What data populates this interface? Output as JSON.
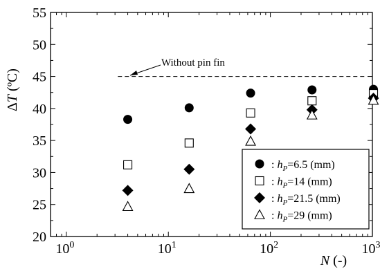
{
  "chart_data": {
    "type": "scatter",
    "xscale": "log",
    "xlim": [
      0.7,
      1000
    ],
    "ylim": [
      20,
      55
    ],
    "grid": false,
    "x_ticks": [
      {
        "value": 1,
        "base": "10",
        "exp": "0"
      },
      {
        "value": 10,
        "base": "10",
        "exp": "1"
      },
      {
        "value": 100,
        "base": "10",
        "exp": "2"
      },
      {
        "value": 1000,
        "base": "10",
        "exp": "3"
      }
    ],
    "y_ticks": [
      20,
      25,
      30,
      35,
      40,
      45,
      50,
      55
    ],
    "xlabel": {
      "symbol": "N",
      "unit": " (-)"
    },
    "ylabel": {
      "prefix": "Δ",
      "symbol": "T",
      "unit": " (ºC)"
    },
    "legend_position": "bottom-right",
    "series": [
      {
        "name": {
          "prefix": ": ",
          "sym": "h",
          "sub": "P",
          "rest": "=6.5 (mm)"
        },
        "marker": "circle-filled",
        "x": [
          4,
          16,
          64,
          256,
          1024
        ],
        "y": [
          38.3,
          40.1,
          42.4,
          42.9,
          43.0
        ]
      },
      {
        "name": {
          "prefix": ": ",
          "sym": "h",
          "sub": "P",
          "rest": "=14 (mm)"
        },
        "marker": "square-open",
        "x": [
          4,
          16,
          64,
          256,
          1024
        ],
        "y": [
          31.2,
          34.6,
          39.3,
          41.2,
          42.3
        ]
      },
      {
        "name": {
          "prefix": ": ",
          "sym": "h",
          "sub": "P",
          "rest": "=21.5 (mm)"
        },
        "marker": "diamond-filled",
        "x": [
          4,
          16,
          64,
          256,
          1024
        ],
        "y": [
          27.2,
          30.5,
          36.8,
          39.8,
          41.6
        ]
      },
      {
        "name": {
          "prefix": ": ",
          "sym": "h",
          "sub": "P",
          "rest": "=29 (mm)"
        },
        "marker": "triangle-open",
        "x": [
          4,
          16,
          64,
          256,
          1024
        ],
        "y": [
          24.7,
          27.5,
          34.9,
          39.0,
          41.3
        ]
      }
    ],
    "reference_line": {
      "label": "Without pin fin",
      "y": 45,
      "x_start": 3.2,
      "x_end": 1000,
      "style": "dashed"
    }
  }
}
